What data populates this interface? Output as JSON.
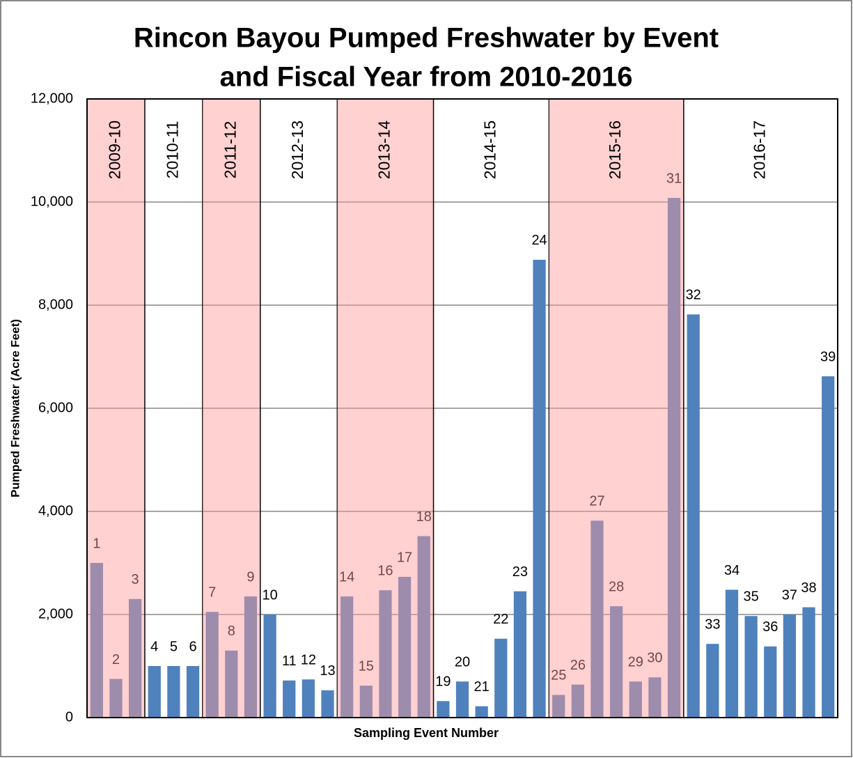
{
  "chart_data": {
    "type": "bar",
    "title_lines": [
      "Rincon Bayou Pumped Freshwater by Event",
      "and Fiscal Year from 2010-2016"
    ],
    "x_label": "Sampling Event Number",
    "y_label": "Pumped Freshwater (Acre Feet)",
    "categories": [
      "1",
      "2",
      "3",
      "4",
      "5",
      "6",
      "7",
      "8",
      "9",
      "10",
      "11",
      "12",
      "13",
      "14",
      "15",
      "16",
      "17",
      "18",
      "19",
      "20",
      "21",
      "22",
      "23",
      "24",
      "25",
      "26",
      "27",
      "28",
      "29",
      "30",
      "31",
      "32",
      "33",
      "34",
      "35",
      "36",
      "37",
      "38",
      "39"
    ],
    "values": [
      3000,
      750,
      2300,
      1000,
      1000,
      1000,
      2050,
      1300,
      2350,
      2000,
      720,
      740,
      530,
      2350,
      620,
      2470,
      2730,
      3520,
      320,
      700,
      220,
      1530,
      2450,
      8880,
      440,
      640,
      3820,
      2160,
      700,
      780,
      10080,
      7820,
      1430,
      2480,
      1970,
      1380,
      2000,
      2140,
      6620
    ],
    "color": "#4f81bd",
    "band_color": "#ff9999",
    "fiscal_years": [
      {
        "label": "2009-10",
        "start": 1,
        "end": 3
      },
      {
        "label": "2010-11",
        "start": 4,
        "end": 6
      },
      {
        "label": "2011-12",
        "start": 7,
        "end": 9
      },
      {
        "label": "2012-13",
        "start": 10,
        "end": 13
      },
      {
        "label": "2013-14",
        "start": 14,
        "end": 18
      },
      {
        "label": "2014-15",
        "start": 19,
        "end": 24
      },
      {
        "label": "2015-16",
        "start": 25,
        "end": 31
      },
      {
        "label": "2016-17",
        "start": 32,
        "end": 39
      }
    ],
    "ylim": [
      0,
      12000
    ],
    "yticks": [
      0,
      {
        "value": 2000,
        "label": "2,000"
      },
      {
        "value": 4000,
        "label": "4,000"
      },
      {
        "value": 6000,
        "label": "6,000"
      },
      {
        "value": 8000,
        "label": "8,000"
      },
      {
        "value": 10000,
        "label": "10,000"
      },
      {
        "value": 12000,
        "label": "12,000"
      }
    ],
    "grid": true
  }
}
